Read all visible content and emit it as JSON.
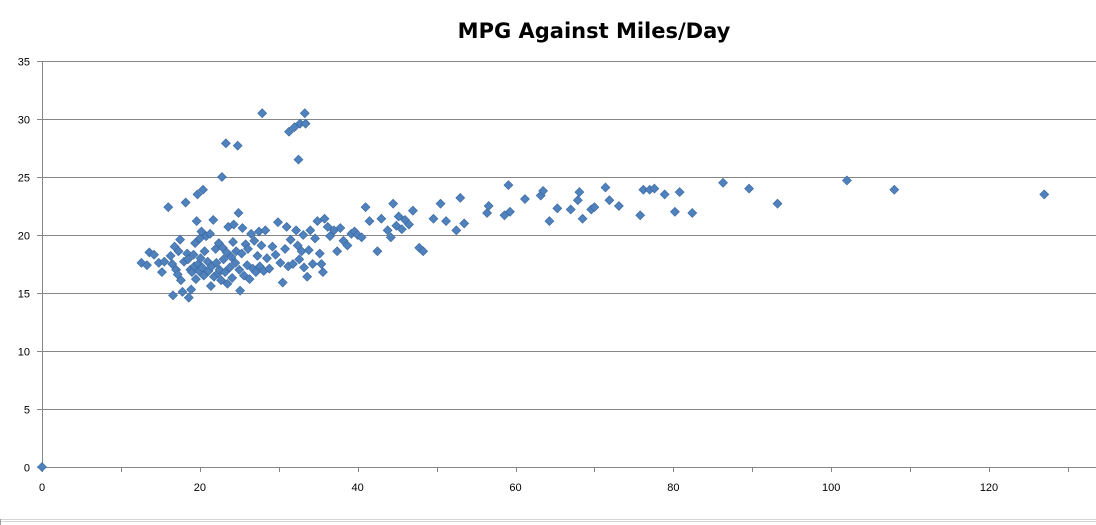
{
  "chart_data": {
    "type": "scatter",
    "title": "MPG Against Miles/Day",
    "xlabel": "",
    "ylabel": "",
    "xlim": [
      0,
      130
    ],
    "ylim": [
      0,
      35
    ],
    "x_ticks": [
      0,
      20,
      40,
      60,
      80,
      100,
      120
    ],
    "y_ticks": [
      0,
      5,
      10,
      15,
      20,
      25,
      30,
      35
    ],
    "grid": "horizontal",
    "legend": "none",
    "marker": "diamond",
    "colors": {
      "marker": "#4f81bd",
      "marker_edge": "#3a679e",
      "gridline": "#868686",
      "axis": "#868686"
    },
    "points": [
      [
        0,
        0
      ],
      [
        12.6,
        17.6
      ],
      [
        13.3,
        17.4
      ],
      [
        13.6,
        18.5
      ],
      [
        14.2,
        18.3
      ],
      [
        14.8,
        17.6
      ],
      [
        15.2,
        16.8
      ],
      [
        15.5,
        17.7
      ],
      [
        16.0,
        22.4
      ],
      [
        16.3,
        18.2
      ],
      [
        16.5,
        17.5
      ],
      [
        16.6,
        14.8
      ],
      [
        16.8,
        19.0
      ],
      [
        17.0,
        17.0
      ],
      [
        17.2,
        16.6
      ],
      [
        17.3,
        18.6
      ],
      [
        17.5,
        19.6
      ],
      [
        17.6,
        16.1
      ],
      [
        17.8,
        15.1
      ],
      [
        18.0,
        17.7
      ],
      [
        18.2,
        22.8
      ],
      [
        18.4,
        18.4
      ],
      [
        18.5,
        17.9
      ],
      [
        18.6,
        14.6
      ],
      [
        18.8,
        17.0
      ],
      [
        18.9,
        15.3
      ],
      [
        19.0,
        16.8
      ],
      [
        19.2,
        18.3
      ],
      [
        19.3,
        17.3
      ],
      [
        19.4,
        19.3
      ],
      [
        19.5,
        16.2
      ],
      [
        19.6,
        21.2
      ],
      [
        19.7,
        23.5
      ],
      [
        19.8,
        17.5
      ],
      [
        19.9,
        16.9
      ],
      [
        20.0,
        19.7
      ],
      [
        20.1,
        18.0
      ],
      [
        20.2,
        20.3
      ],
      [
        20.3,
        17.2
      ],
      [
        20.4,
        23.9
      ],
      [
        20.5,
        16.5
      ],
      [
        20.6,
        18.6
      ],
      [
        20.8,
        19.9
      ],
      [
        21.0,
        17.7
      ],
      [
        21.1,
        16.9
      ],
      [
        21.3,
        20.1
      ],
      [
        21.4,
        15.6
      ],
      [
        21.5,
        17.3
      ],
      [
        21.7,
        21.3
      ],
      [
        21.8,
        16.4
      ],
      [
        22.0,
        18.8
      ],
      [
        22.1,
        17.6
      ],
      [
        22.3,
        16.7
      ],
      [
        22.4,
        19.3
      ],
      [
        22.5,
        17.0
      ],
      [
        22.7,
        16.1
      ],
      [
        22.8,
        25.0
      ],
      [
        22.9,
        18.9
      ],
      [
        23.0,
        17.9
      ],
      [
        23.2,
        16.8
      ],
      [
        23.3,
        27.9
      ],
      [
        23.4,
        18.5
      ],
      [
        23.5,
        15.8
      ],
      [
        23.6,
        20.7
      ],
      [
        23.8,
        17.2
      ],
      [
        24.0,
        18.1
      ],
      [
        24.1,
        16.3
      ],
      [
        24.2,
        19.4
      ],
      [
        24.3,
        20.9
      ],
      [
        24.5,
        17.6
      ],
      [
        24.6,
        18.6
      ],
      [
        24.8,
        27.7
      ],
      [
        24.9,
        21.9
      ],
      [
        25.0,
        17.0
      ],
      [
        25.1,
        15.2
      ],
      [
        25.3,
        18.4
      ],
      [
        25.4,
        20.6
      ],
      [
        25.6,
        16.5
      ],
      [
        25.8,
        19.2
      ],
      [
        26.0,
        17.4
      ],
      [
        26.1,
        18.8
      ],
      [
        26.3,
        16.2
      ],
      [
        26.5,
        20.1
      ],
      [
        26.7,
        17.1
      ],
      [
        26.9,
        19.5
      ],
      [
        27.1,
        16.8
      ],
      [
        27.3,
        18.2
      ],
      [
        27.5,
        20.3
      ],
      [
        27.6,
        17.3
      ],
      [
        27.8,
        19.1
      ],
      [
        27.9,
        30.5
      ],
      [
        28.1,
        16.9
      ],
      [
        28.3,
        20.4
      ],
      [
        28.5,
        18.0
      ],
      [
        28.8,
        17.1
      ],
      [
        29.2,
        19.0
      ],
      [
        29.6,
        18.3
      ],
      [
        29.9,
        21.1
      ],
      [
        30.2,
        17.6
      ],
      [
        30.5,
        15.9
      ],
      [
        30.8,
        18.8
      ],
      [
        31.0,
        20.7
      ],
      [
        31.2,
        17.3
      ],
      [
        31.3,
        28.9
      ],
      [
        31.5,
        19.6
      ],
      [
        31.8,
        17.5
      ],
      [
        32.0,
        29.3
      ],
      [
        32.2,
        20.4
      ],
      [
        32.4,
        19.1
      ],
      [
        32.5,
        26.5
      ],
      [
        32.6,
        17.9
      ],
      [
        32.7,
        29.6
      ],
      [
        32.9,
        18.6
      ],
      [
        33.1,
        20.0
      ],
      [
        33.2,
        17.2
      ],
      [
        33.3,
        30.5
      ],
      [
        33.4,
        29.6
      ],
      [
        33.6,
        16.4
      ],
      [
        33.8,
        18.7
      ],
      [
        34.0,
        20.4
      ],
      [
        34.3,
        17.5
      ],
      [
        34.6,
        19.7
      ],
      [
        34.9,
        21.2
      ],
      [
        35.2,
        18.4
      ],
      [
        35.4,
        17.5
      ],
      [
        35.6,
        16.8
      ],
      [
        35.8,
        21.4
      ],
      [
        36.2,
        20.7
      ],
      [
        36.5,
        19.9
      ],
      [
        37.0,
        20.4
      ],
      [
        37.4,
        18.6
      ],
      [
        37.8,
        20.6
      ],
      [
        38.2,
        19.5
      ],
      [
        38.7,
        19.1
      ],
      [
        39.2,
        20.1
      ],
      [
        39.6,
        20.3
      ],
      [
        40.0,
        20.0
      ],
      [
        40.5,
        19.8
      ],
      [
        41.0,
        22.4
      ],
      [
        41.5,
        21.2
      ],
      [
        42.5,
        18.6
      ],
      [
        43.0,
        21.4
      ],
      [
        43.8,
        20.4
      ],
      [
        44.2,
        19.8
      ],
      [
        44.5,
        22.7
      ],
      [
        44.9,
        20.8
      ],
      [
        45.2,
        21.6
      ],
      [
        45.6,
        20.5
      ],
      [
        46.0,
        21.3
      ],
      [
        46.5,
        20.9
      ],
      [
        47.0,
        22.1
      ],
      [
        47.8,
        18.9
      ],
      [
        48.3,
        18.6
      ],
      [
        49.6,
        21.4
      ],
      [
        50.5,
        22.7
      ],
      [
        51.2,
        21.2
      ],
      [
        52.5,
        20.4
      ],
      [
        53.0,
        23.2
      ],
      [
        53.5,
        21.0
      ],
      [
        56.4,
        21.9
      ],
      [
        56.6,
        22.5
      ],
      [
        58.6,
        21.7
      ],
      [
        59.1,
        24.3
      ],
      [
        59.3,
        22.0
      ],
      [
        61.2,
        23.1
      ],
      [
        63.2,
        23.4
      ],
      [
        63.5,
        23.8
      ],
      [
        64.3,
        21.2
      ],
      [
        65.3,
        22.3
      ],
      [
        67.0,
        22.2
      ],
      [
        67.9,
        23.0
      ],
      [
        68.1,
        23.7
      ],
      [
        68.5,
        21.4
      ],
      [
        69.6,
        22.2
      ],
      [
        70.0,
        22.4
      ],
      [
        71.4,
        24.1
      ],
      [
        71.9,
        23.0
      ],
      [
        73.1,
        22.5
      ],
      [
        75.8,
        21.7
      ],
      [
        76.2,
        23.9
      ],
      [
        77.0,
        23.9
      ],
      [
        77.6,
        24.0
      ],
      [
        78.9,
        23.5
      ],
      [
        80.2,
        22.0
      ],
      [
        80.8,
        23.7
      ],
      [
        82.4,
        21.9
      ],
      [
        86.3,
        24.5
      ],
      [
        89.6,
        24.0
      ],
      [
        93.2,
        22.7
      ],
      [
        102.0,
        24.7
      ],
      [
        108.0,
        23.9
      ],
      [
        127.0,
        23.5
      ]
    ]
  }
}
